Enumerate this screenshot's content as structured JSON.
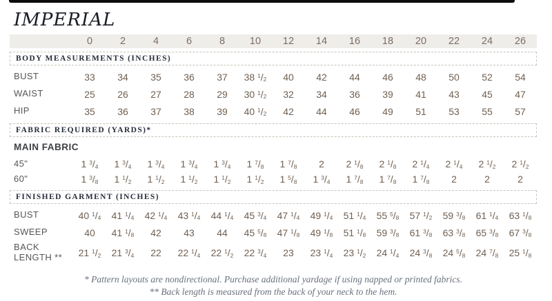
{
  "title": "IMPERIAL",
  "sizes": [
    "0",
    "2",
    "4",
    "6",
    "8",
    "10",
    "12",
    "14",
    "16",
    "18",
    "20",
    "22",
    "24",
    "26"
  ],
  "sections": [
    {
      "type": "header",
      "label": "BODY MEASUREMENTS (INCHES)"
    },
    {
      "type": "row",
      "label": "BUST",
      "group": "body",
      "values": [
        "33",
        "34",
        "35",
        "36",
        "37",
        "38 1/2",
        "40",
        "42",
        "44",
        "46",
        "48",
        "50",
        "52",
        "54"
      ]
    },
    {
      "type": "row",
      "label": "WAIST",
      "group": "body",
      "values": [
        "25",
        "26",
        "27",
        "28",
        "29",
        "30 1/2",
        "32",
        "34",
        "36",
        "39",
        "41",
        "43",
        "45",
        "47"
      ]
    },
    {
      "type": "row",
      "label": "HIP",
      "group": "body",
      "values": [
        "35",
        "36",
        "37",
        "38",
        "39",
        "40 1/2",
        "42",
        "44",
        "46",
        "49",
        "51",
        "53",
        "55",
        "57"
      ]
    },
    {
      "type": "header",
      "label": "FABRIC REQUIRED (YARDS)*"
    },
    {
      "type": "subheader",
      "label": "MAIN FABRIC"
    },
    {
      "type": "row",
      "label": "45\"",
      "group": "fabric",
      "values": [
        "1 3/4",
        "1 3/4",
        "1 3/4",
        "1 3/4",
        "1 3/4",
        "1 7/8",
        "1 7/8",
        "2",
        "2 1/8",
        "2 1/8",
        "2 1/4",
        "2 1/4",
        "2 1/2",
        "2 1/2"
      ]
    },
    {
      "type": "row",
      "label": "60\"",
      "group": "fabric",
      "values": [
        "1 3/8",
        "1 1/2",
        "1 1/2",
        "1 1/2",
        "1 1/2",
        "1 1/2",
        "1 5/8",
        "1 3/4",
        "1 7/8",
        "1 7/8",
        "1 7/8",
        "2",
        "2",
        "2"
      ]
    },
    {
      "type": "header",
      "label": "FINISHED GARMENT (INCHES)"
    },
    {
      "type": "row",
      "label": "BUST",
      "group": "finished",
      "values": [
        "40 1/4",
        "41 1/4",
        "42 1/4",
        "43 1/4",
        "44 1/4",
        "45 3/4",
        "47 1/4",
        "49 1/4",
        "51 1/4",
        "55 5/8",
        "57 1/2",
        "59 3/8",
        "61 1/4",
        "63 1/8"
      ]
    },
    {
      "type": "row",
      "label": "SWEEP",
      "group": "finished",
      "values": [
        "40",
        "41 1/8",
        "42",
        "43",
        "44",
        "45 5/8",
        "47 1/8",
        "49 1/8",
        "51 1/8",
        "59 3/8",
        "61 3/8",
        "63 3/8",
        "65 3/8",
        "67 3/8"
      ]
    },
    {
      "type": "row",
      "label": "BACK LENGTH **",
      "group": "finished-tall",
      "values": [
        "21 1/2",
        "21 3/4",
        "22",
        "22 1/4",
        "22 1/2",
        "22 3/4",
        "23",
        "23 1/4",
        "23 1/2",
        "24 1/4",
        "24 3/8",
        "24 5/8",
        "24 7/8",
        "25 1/8"
      ]
    }
  ],
  "footnotes": [
    "* Pattern layouts are nondirectional. Purchase additional yardage if using napped or printed fabrics.",
    "** Back length is measured from the back of your neck to the hem."
  ],
  "colors": {
    "top_bar": "#0b0b0b",
    "size_band_bg": "#efedea",
    "value_text": "#6f5f51",
    "label_text": "#55565a",
    "section_text": "#272d3a",
    "footnote_text": "#68707c",
    "dashed_border": "#c9c1b7"
  }
}
